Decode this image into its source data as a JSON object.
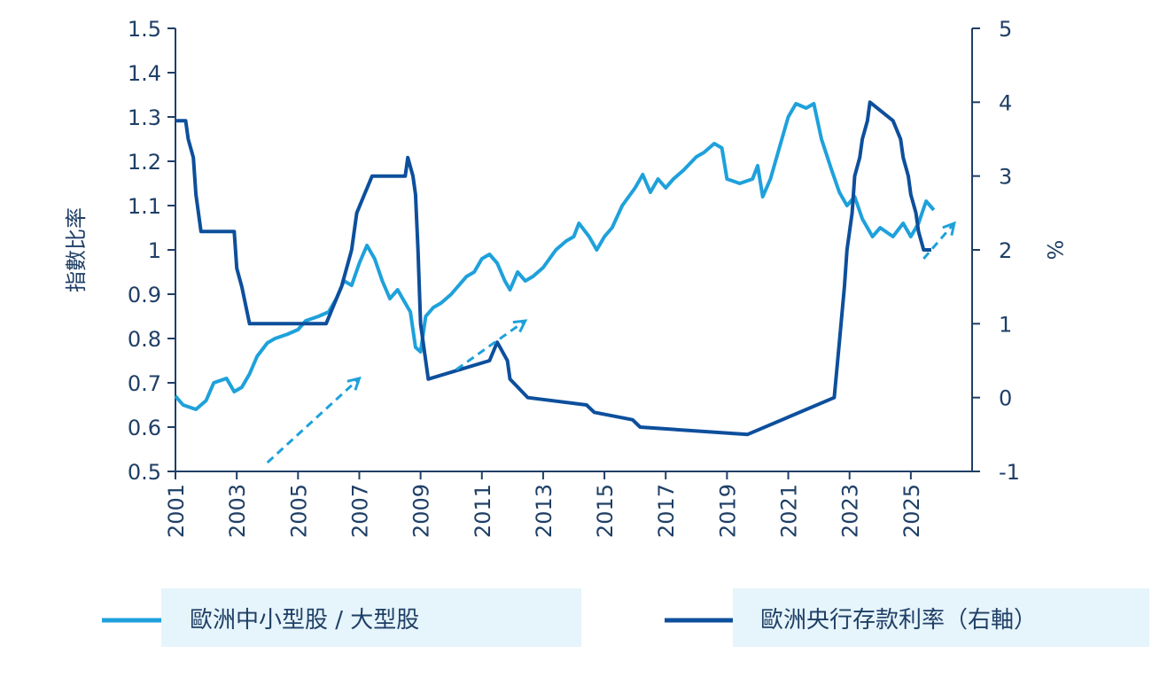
{
  "chart_data": {
    "type": "line",
    "title": "",
    "x_axis": {
      "type": "date",
      "range": [
        "2001-01",
        "2026-12"
      ],
      "tick_labels": [
        "2001",
        "2003",
        "2005",
        "2007",
        "2009",
        "2011",
        "2013",
        "2015",
        "2017",
        "2019",
        "2021",
        "2023",
        "2025"
      ],
      "tick_years": [
        2001,
        2003,
        2005,
        2007,
        2009,
        2011,
        2013,
        2015,
        2017,
        2019,
        2021,
        2023,
        2025
      ]
    },
    "y_left": {
      "label": "指數比率",
      "range": [
        0.5,
        1.5
      ],
      "ticks": [
        0.5,
        0.6,
        0.7,
        0.8,
        0.9,
        1,
        1.1,
        1.2,
        1.3,
        1.4,
        1.5
      ],
      "tick_labels": [
        "0.5",
        "0.6",
        "0.7",
        "0.8",
        "0.9",
        "1",
        "1.1",
        "1.2",
        "1.3",
        "1.4",
        "1.5"
      ]
    },
    "y_right": {
      "label": "%",
      "range": [
        -1,
        5
      ],
      "ticks": [
        -1,
        0,
        1,
        2,
        3,
        4,
        5
      ],
      "tick_labels": [
        "-1",
        "0",
        "1",
        "2",
        "3",
        "4",
        "5"
      ]
    },
    "grid": false,
    "legend": {
      "position": "bottom",
      "entries": [
        "歐洲中小型股 / 大型股",
        "歐洲央行存款利率（右軸）"
      ]
    },
    "series": [
      {
        "name": "歐洲中小型股 / 大型股",
        "axis": "left",
        "color": "#1ea1db",
        "points": [
          [
            "2001-01",
            0.67
          ],
          [
            "2001-04",
            0.65
          ],
          [
            "2001-09",
            0.64
          ],
          [
            "2002-01",
            0.66
          ],
          [
            "2002-04",
            0.7
          ],
          [
            "2002-09",
            0.71
          ],
          [
            "2002-12",
            0.68
          ],
          [
            "2003-03",
            0.69
          ],
          [
            "2003-06",
            0.72
          ],
          [
            "2003-09",
            0.76
          ],
          [
            "2004-01",
            0.79
          ],
          [
            "2004-04",
            0.8
          ],
          [
            "2004-09",
            0.81
          ],
          [
            "2005-01",
            0.82
          ],
          [
            "2005-04",
            0.84
          ],
          [
            "2005-09",
            0.85
          ],
          [
            "2006-01",
            0.86
          ],
          [
            "2006-04",
            0.89
          ],
          [
            "2006-07",
            0.93
          ],
          [
            "2006-10",
            0.92
          ],
          [
            "2007-01",
            0.97
          ],
          [
            "2007-04",
            1.01
          ],
          [
            "2007-07",
            0.98
          ],
          [
            "2007-10",
            0.93
          ],
          [
            "2008-01",
            0.89
          ],
          [
            "2008-04",
            0.91
          ],
          [
            "2008-07",
            0.88
          ],
          [
            "2008-09",
            0.86
          ],
          [
            "2008-11",
            0.78
          ],
          [
            "2009-01",
            0.77
          ],
          [
            "2009-03",
            0.85
          ],
          [
            "2009-06",
            0.87
          ],
          [
            "2009-09",
            0.88
          ],
          [
            "2010-01",
            0.9
          ],
          [
            "2010-04",
            0.92
          ],
          [
            "2010-07",
            0.94
          ],
          [
            "2010-10",
            0.95
          ],
          [
            "2011-01",
            0.98
          ],
          [
            "2011-04",
            0.99
          ],
          [
            "2011-07",
            0.97
          ],
          [
            "2011-10",
            0.93
          ],
          [
            "2011-12",
            0.91
          ],
          [
            "2012-03",
            0.95
          ],
          [
            "2012-06",
            0.93
          ],
          [
            "2012-09",
            0.94
          ],
          [
            "2013-01",
            0.96
          ],
          [
            "2013-06",
            1.0
          ],
          [
            "2013-10",
            1.02
          ],
          [
            "2014-01",
            1.03
          ],
          [
            "2014-03",
            1.06
          ],
          [
            "2014-07",
            1.03
          ],
          [
            "2014-10",
            1.0
          ],
          [
            "2015-01",
            1.03
          ],
          [
            "2015-04",
            1.05
          ],
          [
            "2015-08",
            1.1
          ],
          [
            "2016-01",
            1.14
          ],
          [
            "2016-04",
            1.17
          ],
          [
            "2016-07",
            1.13
          ],
          [
            "2016-10",
            1.16
          ],
          [
            "2017-01",
            1.14
          ],
          [
            "2017-04",
            1.16
          ],
          [
            "2017-08",
            1.18
          ],
          [
            "2018-01",
            1.21
          ],
          [
            "2018-04",
            1.22
          ],
          [
            "2018-08",
            1.24
          ],
          [
            "2018-11",
            1.23
          ],
          [
            "2019-01",
            1.16
          ],
          [
            "2019-06",
            1.15
          ],
          [
            "2019-11",
            1.16
          ],
          [
            "2020-01",
            1.19
          ],
          [
            "2020-03",
            1.12
          ],
          [
            "2020-06",
            1.16
          ],
          [
            "2020-09",
            1.22
          ],
          [
            "2021-01",
            1.3
          ],
          [
            "2021-04",
            1.33
          ],
          [
            "2021-08",
            1.32
          ],
          [
            "2021-11",
            1.33
          ],
          [
            "2022-02",
            1.25
          ],
          [
            "2022-06",
            1.18
          ],
          [
            "2022-09",
            1.13
          ],
          [
            "2022-12",
            1.1
          ],
          [
            "2023-03",
            1.12
          ],
          [
            "2023-06",
            1.07
          ],
          [
            "2023-10",
            1.03
          ],
          [
            "2024-01",
            1.05
          ],
          [
            "2024-06",
            1.03
          ],
          [
            "2024-10",
            1.06
          ],
          [
            "2025-01",
            1.03
          ],
          [
            "2025-04",
            1.06
          ],
          [
            "2025-07",
            1.11
          ],
          [
            "2025-10",
            1.09
          ]
        ]
      },
      {
        "name": "歐洲央行存款利率（右軸）",
        "axis": "right",
        "color": "#0d4f9c",
        "points": [
          [
            "2001-01",
            3.75
          ],
          [
            "2001-05",
            3.75
          ],
          [
            "2001-06",
            3.5
          ],
          [
            "2001-08",
            3.25
          ],
          [
            "2001-09",
            2.75
          ],
          [
            "2001-11",
            2.25
          ],
          [
            "2002-12",
            2.25
          ],
          [
            "2003-01",
            1.75
          ],
          [
            "2003-03",
            1.5
          ],
          [
            "2003-06",
            1.0
          ],
          [
            "2005-12",
            1.0
          ],
          [
            "2006-03",
            1.25
          ],
          [
            "2006-06",
            1.5
          ],
          [
            "2006-08",
            1.75
          ],
          [
            "2006-10",
            2.0
          ],
          [
            "2006-12",
            2.5
          ],
          [
            "2007-03",
            2.75
          ],
          [
            "2007-06",
            3.0
          ],
          [
            "2008-07",
            3.0
          ],
          [
            "2008-08",
            3.25
          ],
          [
            "2008-10",
            3.0
          ],
          [
            "2008-11",
            2.75
          ],
          [
            "2008-12",
            2.0
          ],
          [
            "2009-01",
            1.0
          ],
          [
            "2009-03",
            0.5
          ],
          [
            "2009-04",
            0.25
          ],
          [
            "2011-04",
            0.5
          ],
          [
            "2011-07",
            0.75
          ],
          [
            "2011-11",
            0.5
          ],
          [
            "2011-12",
            0.25
          ],
          [
            "2012-07",
            0.0
          ],
          [
            "2014-06",
            -0.1
          ],
          [
            "2014-09",
            -0.2
          ],
          [
            "2015-12",
            -0.3
          ],
          [
            "2016-03",
            -0.4
          ],
          [
            "2019-09",
            -0.5
          ],
          [
            "2022-07",
            0.0
          ],
          [
            "2022-09",
            0.75
          ],
          [
            "2022-11",
            1.5
          ],
          [
            "2022-12",
            2.0
          ],
          [
            "2023-02",
            2.5
          ],
          [
            "2023-03",
            3.0
          ],
          [
            "2023-05",
            3.25
          ],
          [
            "2023-06",
            3.5
          ],
          [
            "2023-08",
            3.75
          ],
          [
            "2023-09",
            4.0
          ],
          [
            "2024-06",
            3.75
          ],
          [
            "2024-09",
            3.5
          ],
          [
            "2024-10",
            3.25
          ],
          [
            "2024-12",
            3.0
          ],
          [
            "2025-01",
            2.75
          ],
          [
            "2025-03",
            2.5
          ],
          [
            "2025-04",
            2.25
          ],
          [
            "2025-06",
            2.0
          ],
          [
            "2025-09",
            2.0
          ]
        ]
      }
    ],
    "annotations": [
      {
        "type": "dashed-arrow",
        "color": "#1ea1db",
        "from": [
          "2004-01",
          0.52
        ],
        "to": [
          "2007-01",
          0.71
        ]
      },
      {
        "type": "dashed-arrow",
        "color": "#1ea1db",
        "from": [
          "2010-03",
          0.73
        ],
        "to": [
          "2012-06",
          0.84
        ]
      },
      {
        "type": "dashed-arrow",
        "color": "#1ea1db",
        "from": [
          "2025-06",
          0.98
        ],
        "to": [
          "2026-06",
          1.06
        ]
      }
    ]
  }
}
